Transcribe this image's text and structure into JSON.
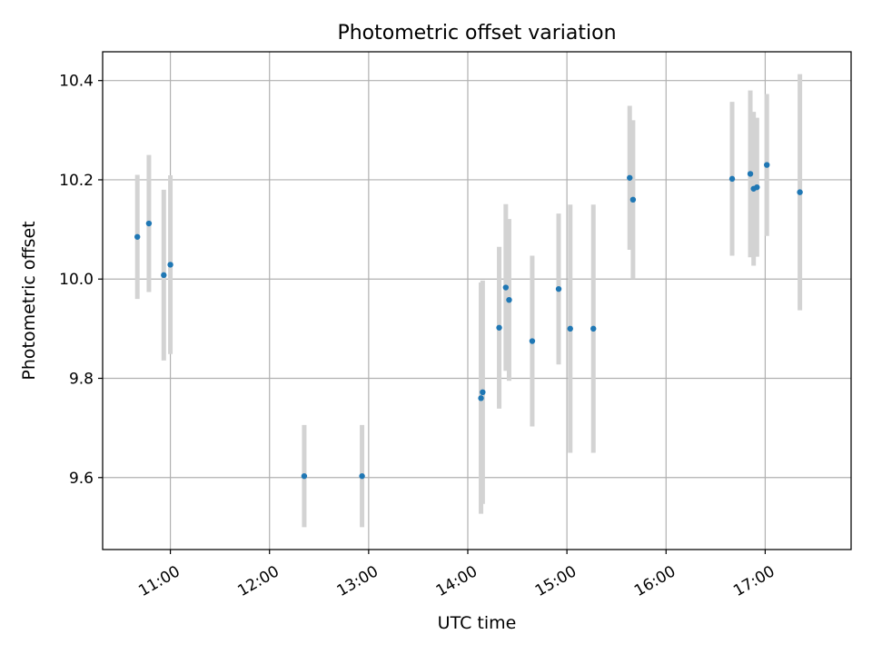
{
  "chart_data": {
    "type": "scatter",
    "title": "Photometric offset variation",
    "xlabel": "UTC time",
    "ylabel": "Photometric offset",
    "xlim": [
      "10:19",
      "17:52"
    ],
    "ylim": [
      9.455,
      10.458
    ],
    "xticks": [
      "11:00",
      "12:00",
      "13:00",
      "14:00",
      "15:00",
      "16:00",
      "17:00"
    ],
    "yticks": [
      9.6,
      9.8,
      10.0,
      10.2,
      10.4
    ],
    "yticklabels": [
      "9.6",
      "9.8",
      "10.0",
      "10.2",
      "10.4"
    ],
    "grid": true,
    "colors": {
      "points": "#1f77b4",
      "errorbars": "#d3d3d3",
      "grid": "#b0b0b0"
    },
    "points": [
      {
        "x": "10:40",
        "y": 10.085,
        "err": 0.125
      },
      {
        "x": "10:47",
        "y": 10.112,
        "err": 0.138
      },
      {
        "x": "10:56",
        "y": 10.008,
        "err": 0.172
      },
      {
        "x": "11:00",
        "y": 10.029,
        "err": 0.18
      },
      {
        "x": "12:21",
        "y": 9.603,
        "err": 0.103
      },
      {
        "x": "12:56",
        "y": 9.603,
        "err": 0.103
      },
      {
        "x": "14:08",
        "y": 9.76,
        "err": 0.233
      },
      {
        "x": "14:09",
        "y": 9.772,
        "err": 0.225
      },
      {
        "x": "14:19",
        "y": 9.902,
        "err": 0.163
      },
      {
        "x": "14:23",
        "y": 9.983,
        "err": 0.168
      },
      {
        "x": "14:25",
        "y": 9.958,
        "err": 0.163
      },
      {
        "x": "14:39",
        "y": 9.875,
        "err": 0.172
      },
      {
        "x": "14:55",
        "y": 9.98,
        "err": 0.152
      },
      {
        "x": "15:02",
        "y": 9.9,
        "err": 0.25
      },
      {
        "x": "15:16",
        "y": 9.9,
        "err": 0.25
      },
      {
        "x": "15:38",
        "y": 10.204,
        "err": 0.145
      },
      {
        "x": "15:40",
        "y": 10.16,
        "err": 0.16
      },
      {
        "x": "16:40",
        "y": 10.202,
        "err": 0.155
      },
      {
        "x": "16:51",
        "y": 10.212,
        "err": 0.168
      },
      {
        "x": "16:53",
        "y": 10.182,
        "err": 0.155
      },
      {
        "x": "16:55",
        "y": 10.185,
        "err": 0.14
      },
      {
        "x": "17:01",
        "y": 10.23,
        "err": 0.143
      },
      {
        "x": "17:21",
        "y": 10.175,
        "err": 0.238
      }
    ]
  }
}
